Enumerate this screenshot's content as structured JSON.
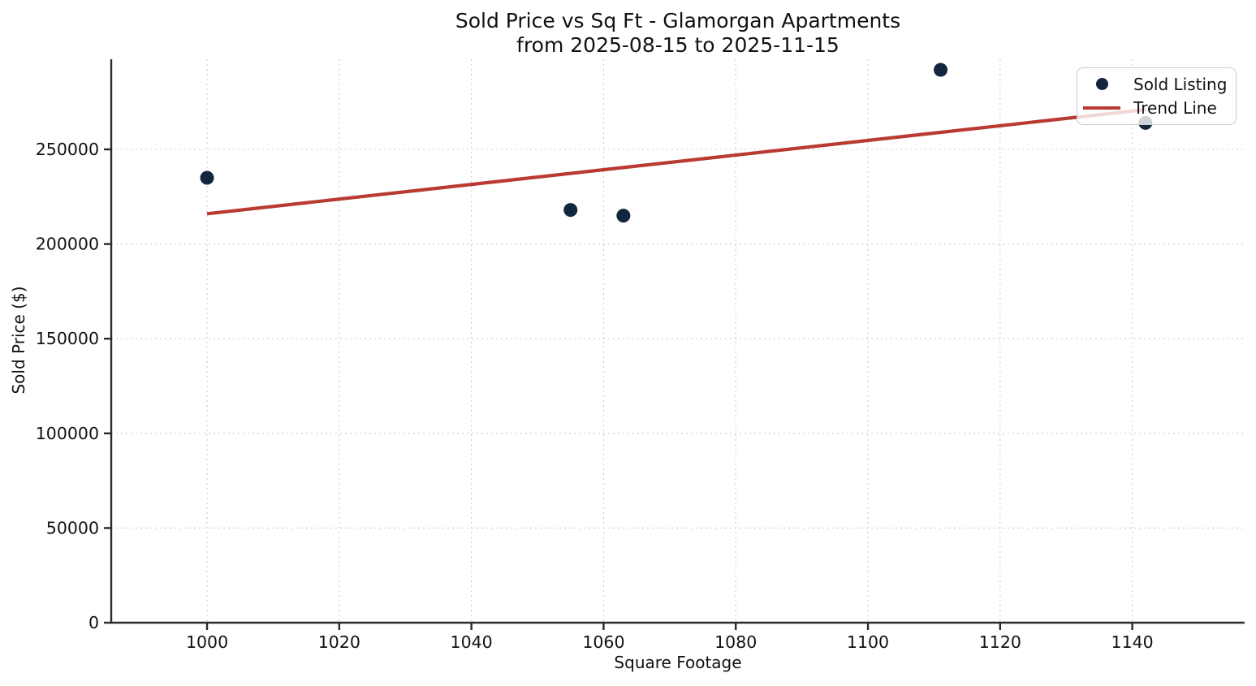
{
  "chart_data": {
    "type": "scatter",
    "title_line1": "Sold Price vs Sq Ft - Glamorgan Apartments",
    "title_line2": "from 2025-08-15 to 2025-11-15",
    "xlabel": "Square Footage",
    "ylabel": "Sold Price ($)",
    "xlim": [
      985.5,
      1157
    ],
    "ylim": [
      0,
      297600
    ],
    "xticks": [
      1000,
      1020,
      1040,
      1060,
      1080,
      1100,
      1120,
      1140
    ],
    "yticks": [
      0,
      50000,
      100000,
      150000,
      200000,
      250000
    ],
    "grid": true,
    "legend_position": "upper right",
    "series": [
      {
        "name": "Sold Listing",
        "kind": "scatter",
        "color": "#12263E",
        "points": [
          [
            1000,
            235000
          ],
          [
            1055,
            218000
          ],
          [
            1063,
            215000
          ],
          [
            1111,
            292000
          ],
          [
            1142,
            264000
          ]
        ]
      },
      {
        "name": "Trend Line",
        "kind": "line",
        "color": "#B93A32",
        "points": [
          [
            1000,
            216000
          ],
          [
            1142,
            271000
          ]
        ]
      }
    ]
  },
  "legend": {
    "items": [
      {
        "label": "Sold Listing",
        "marker": "dot",
        "color": "#12263E"
      },
      {
        "label": "Trend Line",
        "marker": "line",
        "color": "#B93A32"
      }
    ]
  },
  "colors": {
    "dot": "#12263E",
    "trend": "#B93A32",
    "grid": "#cccccc",
    "spine": "#2a2a2a",
    "text": "#111111"
  }
}
